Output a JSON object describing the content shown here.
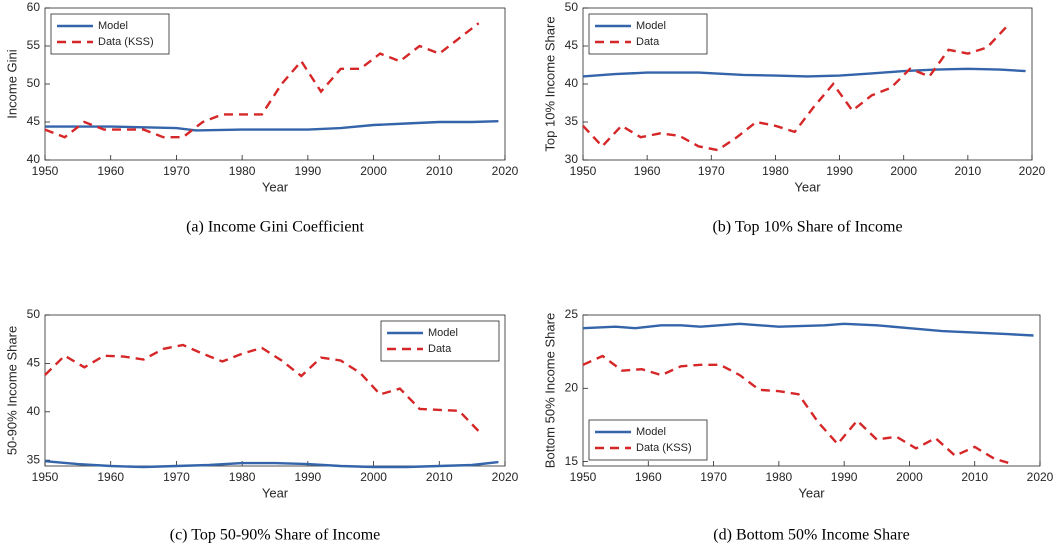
{
  "chart_data": [
    {
      "type": "line",
      "title": "(a) Income Gini Coefficient",
      "xlabel": "Year",
      "ylabel": "Income Gini",
      "xlim": [
        1950,
        2020
      ],
      "xticks": [
        1950,
        1960,
        1970,
        1980,
        1990,
        2000,
        2010,
        2020
      ],
      "ylim": [
        40,
        60
      ],
      "yticks": [
        40,
        45,
        50,
        55,
        60
      ],
      "grid": false,
      "legend": "northwest",
      "series": [
        {
          "name": "Model",
          "color": "#3465aa",
          "style": "solid",
          "x": [
            1950,
            1955,
            1960,
            1965,
            1970,
            1973,
            1980,
            1985,
            1990,
            1995,
            2000,
            2005,
            2010,
            2015,
            2019
          ],
          "values": [
            44.4,
            44.4,
            44.4,
            44.3,
            44.2,
            43.9,
            44.0,
            44.0,
            44.0,
            44.2,
            44.6,
            44.8,
            45.0,
            45.0,
            45.1
          ]
        },
        {
          "name": "Data (KSS)",
          "color": "#d62728",
          "style": "dashed",
          "x": [
            1950,
            1953,
            1956,
            1959,
            1962,
            1965,
            1968,
            1971,
            1974,
            1977,
            1980,
            1983,
            1986,
            1989,
            1992,
            1995,
            1998,
            2001,
            2004,
            2007,
            2010,
            2013,
            2016
          ],
          "values": [
            44,
            43,
            45,
            44,
            44,
            44,
            43,
            43,
            45,
            46,
            46,
            46,
            50,
            53,
            49,
            52,
            52,
            54,
            53,
            55,
            54,
            56,
            58
          ]
        }
      ]
    },
    {
      "type": "line",
      "title": "(b) Top 10% Share of Income",
      "xlabel": "Year",
      "ylabel": "Top 10% Income Share",
      "xlim": [
        1950,
        2020
      ],
      "xticks": [
        1950,
        1960,
        1970,
        1980,
        1990,
        2000,
        2010,
        2020
      ],
      "ylim": [
        30,
        50
      ],
      "yticks": [
        30,
        35,
        40,
        45,
        50
      ],
      "grid": false,
      "legend": "northwest",
      "series": [
        {
          "name": "Model",
          "color": "#3465aa",
          "style": "solid",
          "x": [
            1950,
            1955,
            1960,
            1965,
            1968,
            1975,
            1980,
            1985,
            1990,
            1995,
            2000,
            2005,
            2010,
            2015,
            2019
          ],
          "values": [
            41.0,
            41.3,
            41.5,
            41.5,
            41.5,
            41.2,
            41.1,
            41.0,
            41.1,
            41.4,
            41.7,
            41.9,
            42.0,
            41.9,
            41.7
          ]
        },
        {
          "name": "Data",
          "color": "#d62728",
          "style": "dashed",
          "x": [
            1950,
            1953,
            1956,
            1959,
            1962,
            1965,
            1968,
            1971,
            1974,
            1977,
            1980,
            1983,
            1986,
            1989,
            1992,
            1995,
            1998,
            2001,
            2004,
            2007,
            2010,
            2013,
            2016
          ],
          "values": [
            34.5,
            31.8,
            34.5,
            33,
            33.5,
            33.2,
            31.8,
            31.3,
            33,
            35,
            34.5,
            33.7,
            37,
            40,
            36.5,
            38.5,
            39.5,
            42,
            41,
            44.5,
            44,
            44.8,
            47.5
          ]
        }
      ]
    },
    {
      "type": "line",
      "title": "(c) Top 50-90% Share of Income",
      "xlabel": "Year",
      "ylabel": "50-90% Income Share",
      "xlim": [
        1950,
        2020
      ],
      "xticks": [
        1950,
        1960,
        1970,
        1980,
        1990,
        2000,
        2010,
        2020
      ],
      "ylim": [
        34.4,
        50
      ],
      "yticks": [
        35,
        40,
        45,
        50
      ],
      "grid": false,
      "legend": "northeast",
      "series": [
        {
          "name": "Model",
          "color": "#3465aa",
          "style": "solid",
          "x": [
            1950,
            1955,
            1960,
            1965,
            1970,
            1975,
            1980,
            1985,
            1990,
            1995,
            2000,
            2005,
            2010,
            2015,
            2019
          ],
          "values": [
            34.9,
            34.6,
            34.4,
            34.3,
            34.4,
            34.5,
            34.7,
            34.7,
            34.6,
            34.4,
            34.3,
            34.3,
            34.4,
            34.5,
            34.8
          ]
        },
        {
          "name": "Data",
          "color": "#d62728",
          "style": "dashed",
          "x": [
            1950,
            1953,
            1956,
            1959,
            1962,
            1965,
            1968,
            1971,
            1974,
            1977,
            1980,
            1983,
            1986,
            1989,
            1992,
            1995,
            1998,
            2001,
            2004,
            2007,
            2010,
            2013,
            2016
          ],
          "values": [
            43.8,
            45.8,
            44.6,
            45.8,
            45.7,
            45.4,
            46.5,
            46.9,
            46,
            45.2,
            46,
            46.6,
            45.3,
            43.7,
            45.6,
            45.3,
            44,
            41.8,
            42.4,
            40.3,
            40.2,
            40.1,
            38
          ]
        }
      ]
    },
    {
      "type": "line",
      "title": "(d) Bottom 50% Income Share",
      "xlabel": "Year",
      "ylabel": "Bottom 50% Income Share",
      "xlim": [
        1950,
        2020
      ],
      "xticks": [
        1950,
        1960,
        1970,
        1980,
        1990,
        2000,
        2010,
        2020
      ],
      "ylim": [
        14.7,
        25
      ],
      "yticks": [
        15,
        20,
        25
      ],
      "grid": false,
      "legend": "southwest",
      "series": [
        {
          "name": "Model",
          "color": "#3465aa",
          "style": "solid",
          "x": [
            1950,
            1955,
            1958,
            1962,
            1965,
            1968,
            1974,
            1980,
            1987,
            1990,
            1995,
            2000,
            2005,
            2010,
            2015,
            2019
          ],
          "values": [
            24.1,
            24.2,
            24.1,
            24.3,
            24.3,
            24.2,
            24.4,
            24.2,
            24.3,
            24.4,
            24.3,
            24.1,
            23.9,
            23.8,
            23.7,
            23.6
          ]
        },
        {
          "name": "Data (KSS)",
          "color": "#d62728",
          "style": "dashed",
          "x": [
            1950,
            1953,
            1956,
            1959,
            1962,
            1965,
            1968,
            1971,
            1974,
            1977,
            1980,
            1983,
            1986,
            1989,
            1992,
            1995,
            1998,
            2001,
            2004,
            2007,
            2010,
            2013,
            2016
          ],
          "values": [
            21.6,
            22.2,
            21.2,
            21.3,
            20.9,
            21.5,
            21.6,
            21.6,
            20.9,
            19.9,
            19.8,
            19.6,
            17.7,
            16.2,
            17.8,
            16.5,
            16.7,
            15.9,
            16.6,
            15.4,
            16.0,
            15.2,
            14.8
          ]
        }
      ]
    }
  ]
}
